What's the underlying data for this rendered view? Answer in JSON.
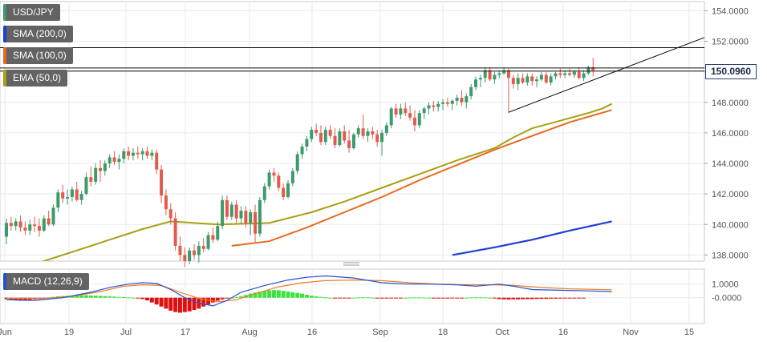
{
  "colors": {
    "up": "#3c9a6b",
    "down": "#e25b4d",
    "sma200": "#1f3fd6",
    "sma100": "#e8691e",
    "ema50": "#a8a012",
    "macd_line": "#2451d4",
    "signal_line": "#ee7d22",
    "hist_pos": "#3ee43e",
    "hist_neg": "#e01010",
    "grid": "#e6e9ee"
  },
  "legend": {
    "symbol": "USD/JPY",
    "sma200": "SMA (200,0)",
    "sma100": "SMA (100,0)",
    "ema50": "EMA (50,0)",
    "macd": "MACD (12,26,9)"
  },
  "price_tag": "150.0960",
  "chart_data": [
    {
      "type": "candlestick",
      "title": "USD/JPY",
      "y_axis_ticks": [
        "154.0000",
        "152.0000",
        "150.0000",
        "148.0000",
        "146.0000",
        "144.0000",
        "142.0000",
        "140.0000",
        "138.0000"
      ],
      "ylim": [
        137.6,
        154.6
      ],
      "x_axis_ticks": [
        "Jun",
        "19",
        "Jul",
        "17",
        "Aug",
        "16",
        "Sep",
        "18",
        "Oct",
        "16",
        "Nov",
        "15"
      ],
      "last_price": 150.096,
      "horizontal_lines": [
        151.58,
        150.25,
        150.05
      ],
      "trendlines": [
        {
          "from": [
            "Oct 3",
            147.35
          ],
          "to": [
            "Nov 15",
            152.25
          ]
        }
      ],
      "candles_ohlc": [
        [
          139.2,
          140.4,
          138.7,
          140.1
        ],
        [
          140.1,
          140.5,
          139.6,
          139.9
        ],
        [
          139.9,
          140.4,
          139.6,
          140.2
        ],
        [
          140.2,
          140.6,
          139.5,
          139.8
        ],
        [
          139.8,
          140.2,
          139.3,
          139.6
        ],
        [
          139.6,
          140.3,
          139.3,
          140.0
        ],
        [
          140.0,
          140.5,
          139.5,
          139.9
        ],
        [
          139.9,
          140.4,
          139.2,
          139.6
        ],
        [
          139.6,
          140.6,
          139.5,
          140.4
        ],
        [
          140.4,
          140.9,
          139.9,
          140.0
        ],
        [
          140.0,
          141.3,
          139.9,
          141.1
        ],
        [
          141.1,
          142.3,
          140.8,
          142.1
        ],
        [
          142.1,
          142.6,
          141.4,
          141.7
        ],
        [
          141.7,
          142.3,
          141.3,
          141.8
        ],
        [
          141.8,
          142.5,
          141.5,
          142.3
        ],
        [
          142.3,
          142.8,
          141.5,
          141.6
        ],
        [
          141.6,
          142.2,
          141.3,
          142.0
        ],
        [
          142.0,
          143.4,
          141.9,
          143.1
        ],
        [
          143.1,
          143.8,
          142.5,
          142.8
        ],
        [
          142.8,
          144.0,
          142.6,
          143.7
        ],
        [
          143.7,
          144.2,
          142.8,
          143.5
        ],
        [
          143.5,
          144.2,
          143.2,
          144.0
        ],
        [
          144.0,
          144.6,
          143.7,
          144.4
        ],
        [
          144.4,
          144.8,
          143.9,
          144.1
        ],
        [
          144.1,
          144.6,
          143.6,
          144.3
        ],
        [
          144.3,
          145.0,
          144.0,
          144.8
        ],
        [
          144.8,
          145.1,
          144.2,
          144.5
        ],
        [
          144.5,
          145.0,
          144.2,
          144.7
        ],
        [
          144.7,
          145.1,
          144.3,
          144.6
        ],
        [
          144.6,
          145.0,
          144.2,
          144.8
        ],
        [
          144.8,
          145.1,
          144.3,
          144.5
        ],
        [
          144.5,
          144.9,
          144.2,
          144.7
        ],
        [
          144.7,
          144.9,
          143.3,
          143.6
        ],
        [
          143.6,
          143.9,
          141.4,
          141.9
        ],
        [
          141.9,
          142.3,
          140.6,
          141.0
        ],
        [
          141.0,
          141.4,
          140.0,
          140.4
        ],
        [
          140.4,
          140.8,
          138.3,
          138.6
        ],
        [
          138.6,
          139.2,
          137.6,
          138.0
        ],
        [
          138.0,
          138.5,
          137.2,
          137.6
        ],
        [
          137.6,
          138.5,
          137.4,
          138.3
        ],
        [
          138.3,
          138.7,
          137.7,
          138.0
        ],
        [
          138.0,
          138.9,
          137.5,
          138.6
        ],
        [
          138.6,
          139.1,
          138.2,
          138.4
        ],
        [
          138.4,
          139.5,
          138.3,
          139.3
        ],
        [
          139.3,
          139.8,
          138.8,
          139.0
        ],
        [
          139.0,
          140.2,
          138.9,
          139.9
        ],
        [
          139.9,
          141.9,
          139.7,
          141.6
        ],
        [
          141.6,
          141.9,
          140.3,
          140.5
        ],
        [
          140.5,
          141.5,
          140.3,
          141.3
        ],
        [
          141.3,
          141.6,
          140.1,
          140.4
        ],
        [
          140.4,
          141.2,
          140.0,
          140.9
        ],
        [
          140.9,
          141.2,
          139.8,
          140.1
        ],
        [
          140.1,
          141.0,
          139.3,
          140.8
        ],
        [
          140.8,
          141.3,
          138.8,
          139.4
        ],
        [
          139.4,
          141.8,
          139.2,
          141.6
        ],
        [
          141.6,
          142.7,
          141.4,
          142.5
        ],
        [
          142.5,
          143.6,
          142.3,
          143.4
        ],
        [
          143.4,
          143.7,
          142.8,
          143.2
        ],
        [
          143.2,
          143.4,
          142.2,
          142.4
        ],
        [
          142.4,
          142.7,
          141.6,
          141.8
        ],
        [
          141.8,
          142.9,
          141.7,
          142.7
        ],
        [
          142.7,
          143.7,
          142.5,
          143.5
        ],
        [
          143.5,
          144.8,
          143.3,
          144.6
        ],
        [
          144.6,
          145.3,
          144.3,
          145.1
        ],
        [
          145.1,
          145.8,
          144.8,
          145.6
        ],
        [
          145.6,
          146.4,
          145.4,
          146.2
        ],
        [
          146.2,
          146.6,
          145.8,
          146.0
        ],
        [
          146.0,
          146.5,
          145.2,
          145.4
        ],
        [
          145.4,
          146.4,
          145.2,
          146.2
        ],
        [
          146.2,
          146.5,
          145.6,
          145.8
        ],
        [
          145.8,
          146.3,
          145.0,
          145.2
        ],
        [
          145.2,
          146.3,
          145.1,
          146.1
        ],
        [
          146.1,
          146.5,
          145.3,
          145.5
        ],
        [
          145.5,
          146.2,
          144.7,
          145.0
        ],
        [
          145.0,
          146.0,
          144.9,
          145.9
        ],
        [
          145.9,
          146.5,
          145.7,
          146.3
        ],
        [
          146.3,
          147.2,
          145.6,
          145.8
        ],
        [
          145.8,
          146.3,
          145.4,
          146.1
        ],
        [
          146.1,
          146.4,
          145.6,
          145.9
        ],
        [
          145.9,
          146.2,
          145.1,
          145.4
        ],
        [
          145.4,
          146.2,
          144.5,
          146.0
        ],
        [
          146.0,
          146.7,
          145.8,
          146.5
        ],
        [
          146.5,
          147.7,
          146.3,
          147.6
        ],
        [
          147.6,
          147.9,
          147.0,
          147.2
        ],
        [
          147.2,
          147.9,
          146.9,
          147.6
        ],
        [
          147.6,
          148.0,
          147.1,
          147.3
        ],
        [
          147.3,
          147.8,
          146.8,
          147.0
        ],
        [
          147.0,
          147.5,
          146.1,
          146.5
        ],
        [
          146.5,
          147.5,
          146.3,
          147.3
        ],
        [
          147.3,
          147.7,
          146.9,
          147.6
        ],
        [
          147.6,
          148.0,
          147.2,
          147.8
        ],
        [
          147.8,
          148.1,
          147.4,
          147.7
        ],
        [
          147.7,
          148.1,
          147.4,
          147.9
        ],
        [
          147.9,
          148.2,
          147.5,
          148.0
        ],
        [
          148.0,
          148.3,
          147.7,
          147.9
        ],
        [
          147.9,
          148.2,
          147.5,
          148.1
        ],
        [
          148.1,
          148.5,
          147.8,
          148.3
        ],
        [
          148.3,
          148.8,
          147.8,
          148.0
        ],
        [
          148.0,
          148.6,
          147.6,
          148.4
        ],
        [
          148.4,
          149.2,
          148.2,
          149.0
        ],
        [
          149.0,
          149.7,
          148.8,
          149.5
        ],
        [
          149.5,
          149.8,
          149.0,
          149.6
        ],
        [
          149.6,
          150.3,
          149.3,
          150.1
        ],
        [
          150.1,
          150.3,
          149.4,
          149.5
        ],
        [
          149.5,
          150.0,
          149.2,
          149.8
        ],
        [
          149.8,
          150.1,
          149.6,
          149.9
        ],
        [
          149.9,
          150.3,
          149.8,
          150.1
        ],
        [
          150.1,
          150.2,
          147.3,
          149.6
        ],
        [
          149.6,
          149.8,
          148.9,
          149.2
        ],
        [
          149.2,
          149.9,
          148.8,
          149.6
        ],
        [
          149.6,
          149.9,
          149.2,
          149.3
        ],
        [
          149.3,
          149.9,
          149.1,
          149.7
        ],
        [
          149.7,
          149.9,
          149.1,
          149.4
        ],
        [
          149.4,
          149.7,
          149.0,
          149.5
        ],
        [
          149.5,
          150.0,
          149.4,
          149.8
        ],
        [
          149.8,
          150.0,
          149.2,
          149.3
        ],
        [
          149.3,
          149.9,
          149.1,
          149.7
        ],
        [
          149.7,
          150.0,
          149.5,
          149.9
        ],
        [
          149.9,
          150.2,
          149.6,
          149.8
        ],
        [
          149.8,
          150.1,
          149.6,
          149.9
        ],
        [
          149.9,
          150.2,
          149.7,
          149.8
        ],
        [
          149.8,
          150.1,
          149.6,
          150.0
        ],
        [
          150.0,
          150.3,
          149.5,
          149.6
        ],
        [
          149.6,
          150.1,
          149.4,
          149.9
        ],
        [
          149.9,
          150.4,
          149.8,
          150.3
        ],
        [
          150.3,
          150.9,
          149.7,
          150.1
        ]
      ],
      "ema50": [
        [
          0,
          136.7
        ],
        [
          8,
          137.6
        ],
        [
          15,
          138.3
        ],
        [
          22,
          139.0
        ],
        [
          29,
          139.7
        ],
        [
          35,
          140.2
        ],
        [
          45,
          140.0
        ],
        [
          56,
          140.1
        ],
        [
          65,
          140.8
        ],
        [
          72,
          141.5
        ],
        [
          80,
          142.4
        ],
        [
          88,
          143.3
        ],
        [
          96,
          144.2
        ],
        [
          104,
          145.0
        ],
        [
          108,
          145.7
        ],
        [
          112,
          146.3
        ],
        [
          118,
          146.8
        ],
        [
          124,
          147.3
        ],
        [
          127,
          147.6
        ],
        [
          129,
          147.9
        ]
      ],
      "sma100": [
        [
          48,
          138.6
        ],
        [
          56,
          138.9
        ],
        [
          64,
          139.8
        ],
        [
          72,
          140.8
        ],
        [
          80,
          141.8
        ],
        [
          88,
          142.9
        ],
        [
          96,
          143.9
        ],
        [
          104,
          144.9
        ],
        [
          112,
          145.8
        ],
        [
          120,
          146.7
        ],
        [
          129,
          147.5
        ]
      ],
      "sma200": [
        [
          95,
          138.0
        ],
        [
          104,
          138.5
        ],
        [
          112,
          139.0
        ],
        [
          120,
          139.6
        ],
        [
          129,
          140.2
        ]
      ]
    },
    {
      "type": "bar",
      "title": "MACD (12,26,9)",
      "y_axis_ticks": [
        "1.0000",
        "-0.0000"
      ],
      "ylim": [
        -1.9,
        2.1
      ],
      "x_axis_ticks": [
        "Jun",
        "19",
        "Jul",
        "17",
        "Aug",
        "16",
        "Sep",
        "18",
        "Oct",
        "16",
        "Nov",
        "15"
      ],
      "histogram": [
        -0.1,
        -0.15,
        -0.2,
        -0.22,
        -0.2,
        -0.15,
        -0.12,
        -0.1,
        -0.05,
        0.02,
        0.06,
        0.1,
        0.12,
        0.14,
        0.15,
        0.16,
        0.17,
        0.18,
        0.16,
        0.15,
        0.14,
        0.12,
        0.1,
        0.08,
        0.06,
        0.04,
        0.02,
        0.0,
        -0.05,
        -0.1,
        -0.2,
        -0.35,
        -0.5,
        -0.65,
        -0.8,
        -0.95,
        -1.05,
        -1.1,
        -1.05,
        -1.0,
        -0.9,
        -0.8,
        -0.65,
        -0.5,
        -0.35,
        -0.22,
        -0.12,
        -0.05,
        0.0,
        0.05,
        0.1,
        0.2,
        0.3,
        0.38,
        0.45,
        0.5,
        0.55,
        0.56,
        0.55,
        0.5,
        0.45,
        0.4,
        0.35,
        0.3,
        0.22,
        0.15,
        0.1,
        0.06,
        0.03,
        0.0,
        -0.03,
        -0.05,
        -0.05,
        -0.03,
        0.0,
        0.02,
        0.03,
        0.02,
        0.0,
        -0.03,
        -0.05,
        -0.06,
        -0.05,
        -0.03,
        -0.02,
        0.0,
        0.01,
        0.02,
        0.02,
        0.01,
        0.0,
        -0.02,
        -0.04,
        -0.05,
        -0.06,
        -0.05,
        -0.03,
        -0.02,
        0.0,
        0.02,
        0.03,
        0.03,
        0.02,
        0.0,
        -0.06,
        -0.1,
        -0.12,
        -0.13,
        -0.12,
        -0.12,
        -0.11,
        -0.1,
        -0.1,
        -0.09,
        -0.08,
        -0.08,
        -0.07,
        -0.07,
        -0.06,
        -0.05,
        -0.05,
        -0.04,
        -0.04,
        -0.03
      ],
      "macd_line": [
        [
          0,
          -0.15
        ],
        [
          6,
          -0.2
        ],
        [
          12,
          0.0
        ],
        [
          18,
          0.4
        ],
        [
          22,
          0.75
        ],
        [
          26,
          1.0
        ],
        [
          29,
          1.1
        ],
        [
          32,
          1.05
        ],
        [
          35,
          0.6
        ],
        [
          38,
          0.0
        ],
        [
          41,
          -0.4
        ],
        [
          44,
          -0.6
        ],
        [
          47,
          -0.2
        ],
        [
          50,
          0.4
        ],
        [
          55,
          0.9
        ],
        [
          60,
          1.3
        ],
        [
          64,
          1.5
        ],
        [
          68,
          1.6
        ],
        [
          74,
          1.45
        ],
        [
          80,
          1.1
        ],
        [
          85,
          1.0
        ],
        [
          90,
          1.0
        ],
        [
          96,
          0.95
        ],
        [
          100,
          0.85
        ],
        [
          105,
          1.0
        ],
        [
          108,
          0.85
        ],
        [
          112,
          0.6
        ],
        [
          118,
          0.55
        ],
        [
          124,
          0.5
        ],
        [
          129,
          0.45
        ]
      ],
      "signal_line": [
        [
          0,
          -0.05
        ],
        [
          8,
          -0.05
        ],
        [
          14,
          0.1
        ],
        [
          20,
          0.45
        ],
        [
          25,
          0.85
        ],
        [
          29,
          0.95
        ],
        [
          33,
          0.9
        ],
        [
          37,
          0.4
        ],
        [
          41,
          -0.05
        ],
        [
          45,
          -0.3
        ],
        [
          49,
          -0.15
        ],
        [
          53,
          0.3
        ],
        [
          58,
          0.8
        ],
        [
          63,
          1.1
        ],
        [
          68,
          1.25
        ],
        [
          74,
          1.3
        ],
        [
          80,
          1.25
        ],
        [
          86,
          1.1
        ],
        [
          92,
          1.0
        ],
        [
          98,
          0.95
        ],
        [
          104,
          0.95
        ],
        [
          108,
          0.9
        ],
        [
          114,
          0.75
        ],
        [
          120,
          0.65
        ],
        [
          129,
          0.58
        ]
      ]
    }
  ]
}
